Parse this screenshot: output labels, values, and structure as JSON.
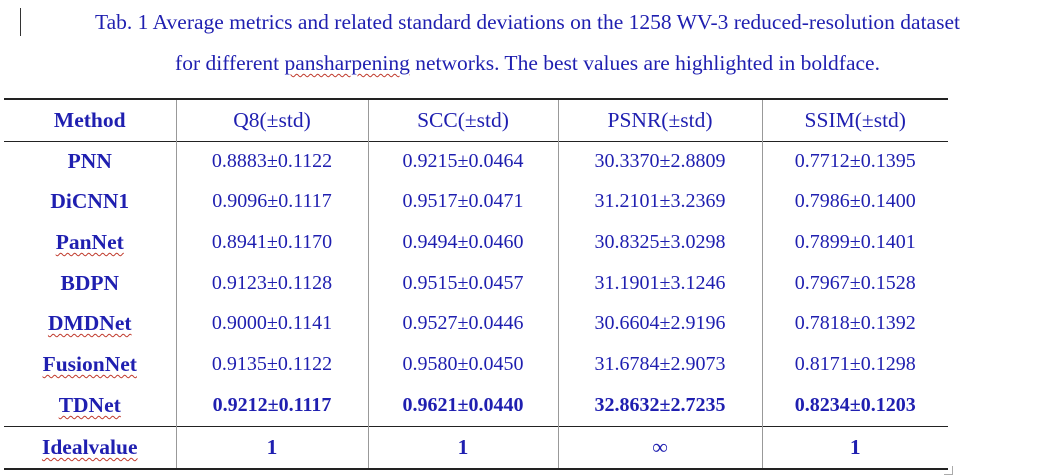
{
  "caption": {
    "line1": "Tab. 1 Average metrics and related standard deviations on the 1258 WV-3 reduced-resolution dataset",
    "line2_before": "for different ",
    "line2_flagged": "pansharpening",
    "line2_after": " networks. The best values are highlighted in boldface."
  },
  "table": {
    "headers": [
      "Method",
      "Q8(±std)",
      "SCC(±std)",
      "PSNR(±std)",
      "SSIM(±std)"
    ],
    "rows": [
      {
        "method": "PNN",
        "q8": "0.8883±0.1122",
        "scc": "0.9215±0.0464",
        "psnr": "30.3370±2.8809",
        "ssim": "0.7712±0.1395"
      },
      {
        "method": "DiCNN1",
        "q8": "0.9096±0.1117",
        "scc": "0.9517±0.0471",
        "psnr": "31.2101±3.2369",
        "ssim": "0.7986±0.1400"
      },
      {
        "method": "PanNet",
        "q8": "0.8941±0.1170",
        "scc": "0.9494±0.0460",
        "psnr": "30.8325±3.0298",
        "ssim": "0.7899±0.1401"
      },
      {
        "method": "BDPN",
        "q8": "0.9123±0.1128",
        "scc": "0.9515±0.0457",
        "psnr": "31.1901±3.1246",
        "ssim": "0.7967±0.1528"
      },
      {
        "method": "DMDNet",
        "q8": "0.9000±0.1141",
        "scc": "0.9527±0.0446",
        "psnr": "30.6604±2.9196",
        "ssim": "0.7818±0.1392"
      },
      {
        "method": "FusionNet",
        "q8": "0.9135±0.1122",
        "scc": "0.9580±0.0450",
        "psnr": "31.6784±2.9073",
        "ssim": "0.8171±0.1298"
      },
      {
        "method": "TDNet",
        "q8": "0.9212±0.1117",
        "scc": "0.9621±0.0440",
        "psnr": "32.8632±2.7235",
        "ssim": "0.8234±0.1203"
      }
    ],
    "ideal": {
      "label": "Idealvalue",
      "q8": "1",
      "scc": "1",
      "psnr": "∞",
      "ssim": "1"
    }
  },
  "colors": {
    "text": "#1f1fb0",
    "rule": "#222222",
    "spellcheck": "#c0392b"
  }
}
